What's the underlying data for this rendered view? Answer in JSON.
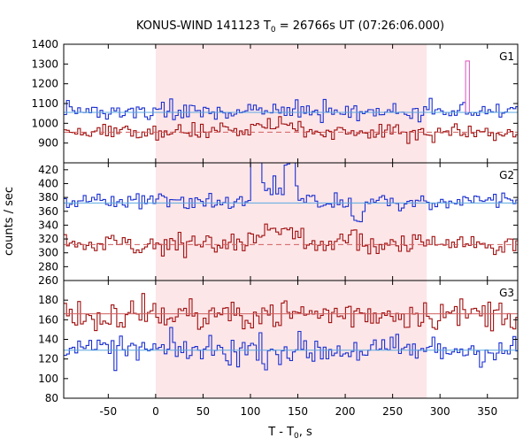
{
  "chart_data": {
    "type": "line",
    "title_main": "KONUS-WIND 141123 T",
    "title_sub": "0",
    "title_rest": " = 26766s UT (07:26:06.000)",
    "xlabel_main": "T - T",
    "xlabel_sub": "0",
    "xlabel_rest": ", s",
    "ylabel": "counts / sec",
    "xlim": [
      -97,
      382
    ],
    "x_ticks": [
      -50,
      0,
      50,
      100,
      150,
      200,
      250,
      300,
      350
    ],
    "shaded_interval": [
      0,
      286
    ],
    "colors": {
      "blue_series": "#1a2fd0",
      "red_series": "#a01010",
      "blue_background_fit": "#5aa8e0",
      "red_background_fit": "#d06060",
      "shading": "#fde6e8",
      "spike": "#e060c0"
    },
    "panels": [
      {
        "label": "G1",
        "ylim": [
          800,
          1400
        ],
        "y_ticks": [
          900,
          1000,
          1100,
          1200,
          1300,
          1400
        ],
        "series": [
          {
            "color_key": "blue_series",
            "mean": 1060,
            "noise": 22,
            "background": 1055,
            "features": [
              [
                283,
                292,
                1085
              ]
            ]
          },
          {
            "color_key": "red_series",
            "mean": 955,
            "noise": 22,
            "background": 955,
            "features": [
              [
                100,
                155,
                990
              ]
            ],
            "background_style": "dashed"
          }
        ],
        "spike": {
          "x": [
            327,
            331
          ],
          "y": 1315
        }
      },
      {
        "label": "G2",
        "ylim": [
          260,
          430
        ],
        "y_ticks": [
          260,
          280,
          300,
          320,
          340,
          360,
          380,
          400,
          420
        ],
        "series": [
          {
            "color_key": "blue_series",
            "mean": 375,
            "noise": 6,
            "background": 372,
            "features": [
              [
                98,
                110,
                418
              ],
              [
                133,
                147,
                412
              ],
              [
                100,
                150,
                395
              ],
              [
                205,
                220,
                345
              ]
            ]
          },
          {
            "color_key": "red_series",
            "mean": 312,
            "noise": 7,
            "background": 312,
            "features": [
              [
                95,
                155,
                328
              ],
              [
                190,
                216,
                322
              ]
            ],
            "background_style": "dashed"
          }
        ]
      },
      {
        "label": "G3",
        "ylim": [
          80,
          200
        ],
        "y_ticks": [
          80,
          100,
          120,
          140,
          160,
          180
        ],
        "series": [
          {
            "color_key": "red_series",
            "mean": 166,
            "noise": 8,
            "background": 166
          },
          {
            "color_key": "blue_series",
            "mean": 129,
            "noise": 8,
            "background": 129
          }
        ]
      }
    ],
    "bin_width": 2.944,
    "random_seed": 141123
  }
}
